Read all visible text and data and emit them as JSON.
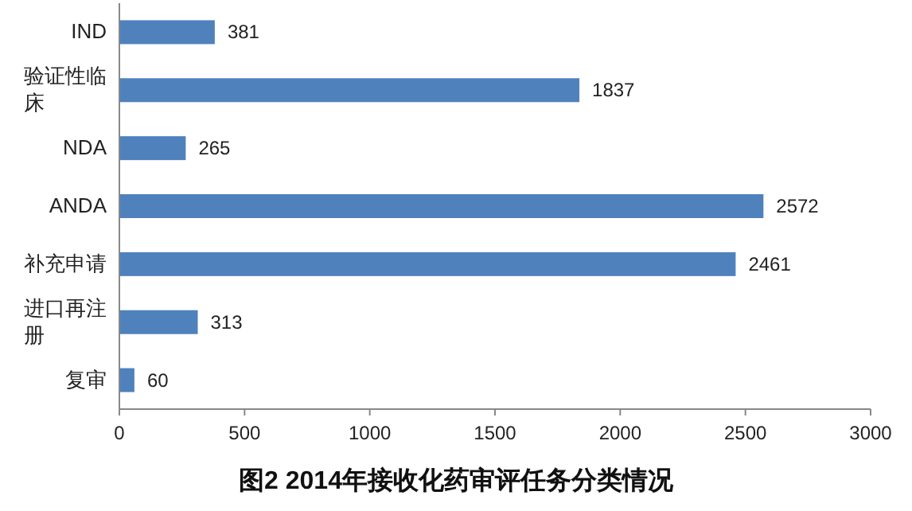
{
  "chart_data": {
    "type": "bar",
    "orientation": "horizontal",
    "title": "图2 2014年接收化药审评任务分类情况",
    "categories": [
      "IND",
      "验证性临床",
      "NDA",
      "ANDA",
      "补充申请",
      "进口再注册",
      "复审"
    ],
    "values": [
      381,
      1837,
      265,
      2572,
      2461,
      313,
      60
    ],
    "color": "#4f81bd",
    "xlim": [
      0,
      3000
    ],
    "xticks": [
      0,
      500,
      1000,
      1500,
      2000,
      2500,
      3000
    ],
    "grid": false,
    "data_labels": true
  }
}
